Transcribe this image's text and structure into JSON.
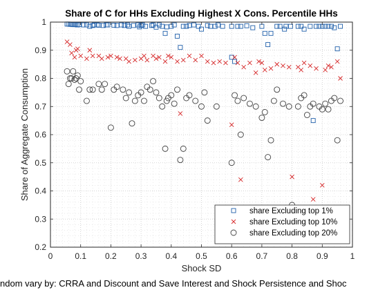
{
  "chart_data": {
    "type": "scatter",
    "title": "Share of C for HHs Excluding Highest X Cons. Percentile HHs",
    "xlabel": "Shock SD",
    "ylabel": "Share of Aggregate Consumption",
    "caption": "ndom vary by: CRRA and Discount and Save Interest and Shock Persistence and Shoc",
    "xlim": [
      0,
      1
    ],
    "ylim": [
      0.2,
      1
    ],
    "x_ticks": [
      "0",
      "0.1",
      "0.2",
      "0.3",
      "0.4",
      "0.5",
      "0.6",
      "0.7",
      "0.8",
      "0.9",
      "1"
    ],
    "y_ticks": [
      "0.2",
      "0.3",
      "0.4",
      "0.5",
      "0.6",
      "0.7",
      "0.8",
      "0.9",
      "1"
    ],
    "grid": "major and minor dotted",
    "legend_position": "bottom-right",
    "series": [
      {
        "name": "share Excluding top 1%",
        "marker": "square",
        "color": "#1f5faa",
        "points": [
          [
            0.055,
            0.993
          ],
          [
            0.06,
            0.993
          ],
          [
            0.065,
            0.992
          ],
          [
            0.07,
            0.992
          ],
          [
            0.075,
            0.991
          ],
          [
            0.08,
            0.992
          ],
          [
            0.085,
            0.991
          ],
          [
            0.09,
            0.99
          ],
          [
            0.095,
            0.991
          ],
          [
            0.11,
            0.99
          ],
          [
            0.12,
            0.99
          ],
          [
            0.13,
            0.985
          ],
          [
            0.14,
            0.988
          ],
          [
            0.145,
            0.99
          ],
          [
            0.155,
            0.99
          ],
          [
            0.16,
            0.989
          ],
          [
            0.175,
            0.988
          ],
          [
            0.185,
            0.99
          ],
          [
            0.19,
            0.99
          ],
          [
            0.21,
            0.989
          ],
          [
            0.22,
            0.988
          ],
          [
            0.235,
            0.99
          ],
          [
            0.245,
            0.988
          ],
          [
            0.255,
            0.99
          ],
          [
            0.26,
            0.985
          ],
          [
            0.275,
            0.988
          ],
          [
            0.29,
            0.99
          ],
          [
            0.295,
            0.983
          ],
          [
            0.3,
            0.988
          ],
          [
            0.305,
            0.99
          ],
          [
            0.315,
            0.985
          ],
          [
            0.335,
            0.988
          ],
          [
            0.34,
            0.99
          ],
          [
            0.35,
            0.982
          ],
          [
            0.36,
            0.99
          ],
          [
            0.37,
            0.985
          ],
          [
            0.38,
            0.96
          ],
          [
            0.385,
            0.983
          ],
          [
            0.4,
            0.985
          ],
          [
            0.41,
            0.99
          ],
          [
            0.42,
            0.95
          ],
          [
            0.43,
            0.91
          ],
          [
            0.44,
            0.985
          ],
          [
            0.45,
            0.985
          ],
          [
            0.46,
            0.988
          ],
          [
            0.475,
            0.99
          ],
          [
            0.49,
            0.985
          ],
          [
            0.5,
            0.975
          ],
          [
            0.52,
            0.988
          ],
          [
            0.53,
            0.985
          ],
          [
            0.545,
            0.985
          ],
          [
            0.555,
            0.99
          ],
          [
            0.57,
            0.985
          ],
          [
            0.6,
            0.985
          ],
          [
            0.6,
            0.875
          ],
          [
            0.61,
            0.86
          ],
          [
            0.62,
            0.985
          ],
          [
            0.63,
            0.985
          ],
          [
            0.65,
            0.987
          ],
          [
            0.67,
            0.98
          ],
          [
            0.7,
            0.985
          ],
          [
            0.71,
            0.96
          ],
          [
            0.72,
            0.92
          ],
          [
            0.73,
            0.96
          ],
          [
            0.75,
            0.985
          ],
          [
            0.76,
            0.985
          ],
          [
            0.775,
            0.975
          ],
          [
            0.78,
            0.985
          ],
          [
            0.795,
            0.985
          ],
          [
            0.82,
            0.985
          ],
          [
            0.83,
            0.985
          ],
          [
            0.84,
            0.975
          ],
          [
            0.86,
            0.985
          ],
          [
            0.87,
            0.65
          ],
          [
            0.88,
            0.985
          ],
          [
            0.89,
            0.985
          ],
          [
            0.9,
            0.985
          ],
          [
            0.91,
            0.985
          ],
          [
            0.92,
            0.985
          ],
          [
            0.93,
            0.985
          ],
          [
            0.94,
            0.98
          ],
          [
            0.95,
            0.905
          ],
          [
            0.96,
            0.985
          ]
        ]
      },
      {
        "name": "share Excluding top 10%",
        "marker": "x",
        "color": "#d62728",
        "points": [
          [
            0.055,
            0.93
          ],
          [
            0.065,
            0.92
          ],
          [
            0.07,
            0.89
          ],
          [
            0.08,
            0.875
          ],
          [
            0.085,
            0.9
          ],
          [
            0.09,
            0.905
          ],
          [
            0.1,
            0.88
          ],
          [
            0.12,
            0.87
          ],
          [
            0.13,
            0.9
          ],
          [
            0.14,
            0.88
          ],
          [
            0.16,
            0.88
          ],
          [
            0.17,
            0.87
          ],
          [
            0.19,
            0.875
          ],
          [
            0.2,
            0.88
          ],
          [
            0.22,
            0.875
          ],
          [
            0.23,
            0.87
          ],
          [
            0.25,
            0.87
          ],
          [
            0.26,
            0.86
          ],
          [
            0.28,
            0.865
          ],
          [
            0.3,
            0.87
          ],
          [
            0.31,
            0.88
          ],
          [
            0.32,
            0.865
          ],
          [
            0.34,
            0.88
          ],
          [
            0.35,
            0.87
          ],
          [
            0.36,
            0.875
          ],
          [
            0.38,
            0.86
          ],
          [
            0.39,
            0.88
          ],
          [
            0.4,
            0.875
          ],
          [
            0.42,
            0.86
          ],
          [
            0.43,
            0.675
          ],
          [
            0.44,
            0.865
          ],
          [
            0.46,
            0.88
          ],
          [
            0.48,
            0.865
          ],
          [
            0.5,
            0.88
          ],
          [
            0.52,
            0.86
          ],
          [
            0.54,
            0.855
          ],
          [
            0.56,
            0.86
          ],
          [
            0.58,
            0.855
          ],
          [
            0.6,
            0.635
          ],
          [
            0.61,
            0.875
          ],
          [
            0.62,
            0.855
          ],
          [
            0.63,
            0.44
          ],
          [
            0.64,
            0.84
          ],
          [
            0.66,
            0.855
          ],
          [
            0.68,
            0.82
          ],
          [
            0.69,
            0.86
          ],
          [
            0.7,
            0.855
          ],
          [
            0.71,
            0.83
          ],
          [
            0.73,
            0.835
          ],
          [
            0.75,
            0.85
          ],
          [
            0.77,
            0.845
          ],
          [
            0.79,
            0.84
          ],
          [
            0.8,
            0.45
          ],
          [
            0.82,
            0.84
          ],
          [
            0.83,
            0.83
          ],
          [
            0.84,
            0.855
          ],
          [
            0.86,
            0.845
          ],
          [
            0.87,
            0.37
          ],
          [
            0.88,
            0.835
          ],
          [
            0.9,
            0.42
          ],
          [
            0.91,
            0.83
          ],
          [
            0.92,
            0.845
          ],
          [
            0.93,
            0.84
          ],
          [
            0.95,
            0.86
          ],
          [
            0.96,
            0.8
          ]
        ]
      },
      {
        "name": "share Excluding top 20%",
        "marker": "circle",
        "color": "#404040",
        "points": [
          [
            0.055,
            0.825
          ],
          [
            0.06,
            0.78
          ],
          [
            0.065,
            0.8
          ],
          [
            0.07,
            0.8
          ],
          [
            0.075,
            0.825
          ],
          [
            0.08,
            0.795
          ],
          [
            0.085,
            0.8
          ],
          [
            0.09,
            0.81
          ],
          [
            0.095,
            0.76
          ],
          [
            0.1,
            0.79
          ],
          [
            0.12,
            0.72
          ],
          [
            0.13,
            0.76
          ],
          [
            0.14,
            0.76
          ],
          [
            0.16,
            0.78
          ],
          [
            0.17,
            0.76
          ],
          [
            0.18,
            0.78
          ],
          [
            0.2,
            0.625
          ],
          [
            0.21,
            0.76
          ],
          [
            0.22,
            0.77
          ],
          [
            0.24,
            0.76
          ],
          [
            0.25,
            0.73
          ],
          [
            0.26,
            0.75
          ],
          [
            0.27,
            0.64
          ],
          [
            0.28,
            0.72
          ],
          [
            0.29,
            0.74
          ],
          [
            0.3,
            0.75
          ],
          [
            0.31,
            0.72
          ],
          [
            0.32,
            0.77
          ],
          [
            0.33,
            0.76
          ],
          [
            0.34,
            0.79
          ],
          [
            0.35,
            0.75
          ],
          [
            0.36,
            0.73
          ],
          [
            0.37,
            0.7
          ],
          [
            0.38,
            0.55
          ],
          [
            0.385,
            0.72
          ],
          [
            0.39,
            0.73
          ],
          [
            0.4,
            0.74
          ],
          [
            0.41,
            0.71
          ],
          [
            0.42,
            0.76
          ],
          [
            0.43,
            0.51
          ],
          [
            0.44,
            0.55
          ],
          [
            0.45,
            0.73
          ],
          [
            0.46,
            0.74
          ],
          [
            0.48,
            0.72
          ],
          [
            0.5,
            0.7
          ],
          [
            0.51,
            0.75
          ],
          [
            0.52,
            0.65
          ],
          [
            0.55,
            0.7
          ],
          [
            0.6,
            0.5
          ],
          [
            0.61,
            0.74
          ],
          [
            0.62,
            0.72
          ],
          [
            0.63,
            0.6
          ],
          [
            0.64,
            0.73
          ],
          [
            0.66,
            0.71
          ],
          [
            0.68,
            0.7
          ],
          [
            0.7,
            0.66
          ],
          [
            0.71,
            0.68
          ],
          [
            0.72,
            0.52
          ],
          [
            0.73,
            0.58
          ],
          [
            0.74,
            0.72
          ],
          [
            0.75,
            0.76
          ],
          [
            0.77,
            0.71
          ],
          [
            0.79,
            0.7
          ],
          [
            0.8,
            0.35
          ],
          [
            0.82,
            0.7
          ],
          [
            0.83,
            0.73
          ],
          [
            0.84,
            0.74
          ],
          [
            0.85,
            0.67
          ],
          [
            0.86,
            0.7
          ],
          [
            0.87,
            0.71
          ],
          [
            0.89,
            0.7
          ],
          [
            0.9,
            0.69
          ],
          [
            0.91,
            0.71
          ],
          [
            0.92,
            0.69
          ],
          [
            0.93,
            0.72
          ],
          [
            0.94,
            0.73
          ],
          [
            0.95,
            0.58
          ],
          [
            0.96,
            0.72
          ]
        ]
      }
    ]
  }
}
